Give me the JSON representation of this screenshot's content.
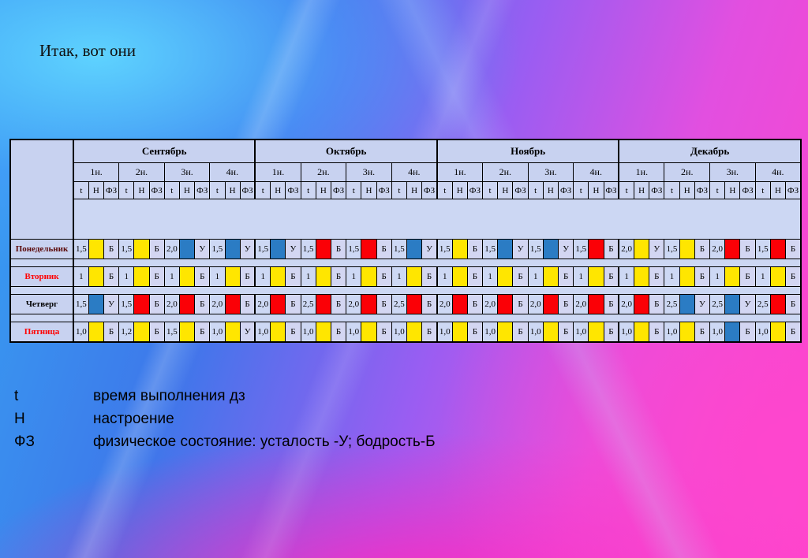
{
  "slide": {
    "title": "Итак, вот они"
  },
  "table": {
    "months": [
      "Сентябрь",
      "Октябрь",
      "Ноябрь",
      "Декабрь"
    ],
    "weeks": [
      "1н.",
      "2н.",
      "3н.",
      "4н."
    ],
    "measures": [
      "t",
      "Н",
      "ФЗ"
    ],
    "colors": {
      "y": "#ffe600",
      "r": "#fb0006",
      "b": "#2b7cc4"
    },
    "days": [
      {
        "name": "Понедельник",
        "color": "#5c0a0a",
        "cells": [
          {
            "t": "1,5",
            "n": "y",
            "fz": "Б"
          },
          {
            "t": "1,5",
            "n": "y",
            "fz": "Б"
          },
          {
            "t": "2,0",
            "n": "b",
            "fz": "У"
          },
          {
            "t": "1,5",
            "n": "b",
            "fz": "У"
          },
          {
            "t": "1,5",
            "n": "b",
            "fz": "У"
          },
          {
            "t": "1,5",
            "n": "r",
            "fz": "Б"
          },
          {
            "t": "1,5",
            "n": "r",
            "fz": "Б"
          },
          {
            "t": "1,5",
            "n": "b",
            "fz": "У"
          },
          {
            "t": "1,5",
            "n": "y",
            "fz": "Б"
          },
          {
            "t": "1,5",
            "n": "b",
            "fz": "У"
          },
          {
            "t": "1,5",
            "n": "b",
            "fz": "У"
          },
          {
            "t": "1,5",
            "n": "r",
            "fz": "Б"
          },
          {
            "t": "2,0",
            "n": "y",
            "fz": "У"
          },
          {
            "t": "1,5",
            "n": "y",
            "fz": "Б"
          },
          {
            "t": "2,0",
            "n": "r",
            "fz": "Б"
          },
          {
            "t": "1,5",
            "n": "r",
            "fz": "Б"
          }
        ]
      },
      {
        "name": "Вторник",
        "color": "#ff0000",
        "cells": [
          {
            "t": "1",
            "n": "y",
            "fz": "Б"
          },
          {
            "t": "1",
            "n": "y",
            "fz": "Б"
          },
          {
            "t": "1",
            "n": "y",
            "fz": "Б"
          },
          {
            "t": "1",
            "n": "y",
            "fz": "Б"
          },
          {
            "t": "1",
            "n": "y",
            "fz": "Б"
          },
          {
            "t": "1",
            "n": "y",
            "fz": "Б"
          },
          {
            "t": "1",
            "n": "y",
            "fz": "Б"
          },
          {
            "t": "1",
            "n": "y",
            "fz": "Б"
          },
          {
            "t": "1",
            "n": "y",
            "fz": "Б"
          },
          {
            "t": "1",
            "n": "y",
            "fz": "Б"
          },
          {
            "t": "1",
            "n": "y",
            "fz": "Б"
          },
          {
            "t": "1",
            "n": "y",
            "fz": "Б"
          },
          {
            "t": "1",
            "n": "y",
            "fz": "Б"
          },
          {
            "t": "1",
            "n": "y",
            "fz": "Б"
          },
          {
            "t": "1",
            "n": "y",
            "fz": "Б"
          },
          {
            "t": "1",
            "n": "y",
            "fz": "Б"
          }
        ]
      },
      {
        "name": "Четверг",
        "color": "#000000",
        "cells": [
          {
            "t": "1,5",
            "n": "b",
            "fz": "У"
          },
          {
            "t": "1,5",
            "n": "r",
            "fz": "Б"
          },
          {
            "t": "2,0",
            "n": "r",
            "fz": "Б"
          },
          {
            "t": "2,0",
            "n": "r",
            "fz": "Б"
          },
          {
            "t": "2,0",
            "n": "r",
            "fz": "Б"
          },
          {
            "t": "2,5",
            "n": "r",
            "fz": "Б"
          },
          {
            "t": "2,0",
            "n": "r",
            "fz": "Б"
          },
          {
            "t": "2,5",
            "n": "r",
            "fz": "Б"
          },
          {
            "t": "2,0",
            "n": "r",
            "fz": "Б"
          },
          {
            "t": "2,0",
            "n": "r",
            "fz": "Б"
          },
          {
            "t": "2,0",
            "n": "r",
            "fz": "Б"
          },
          {
            "t": "2,0",
            "n": "r",
            "fz": "Б"
          },
          {
            "t": "2,0",
            "n": "r",
            "fz": "Б"
          },
          {
            "t": "2,5",
            "n": "b",
            "fz": "У"
          },
          {
            "t": "2,5",
            "n": "b",
            "fz": "У"
          },
          {
            "t": "2,5",
            "n": "r",
            "fz": "Б"
          }
        ]
      },
      {
        "name": "Пятница",
        "color": "#ff0000",
        "cells": [
          {
            "t": "1,0",
            "n": "y",
            "fz": "Б"
          },
          {
            "t": "1,2",
            "n": "y",
            "fz": "Б"
          },
          {
            "t": "1,5",
            "n": "y",
            "fz": "Б"
          },
          {
            "t": "1,0",
            "n": "y",
            "fz": "У"
          },
          {
            "t": "1,0",
            "n": "y",
            "fz": "Б"
          },
          {
            "t": "1,0",
            "n": "y",
            "fz": "Б"
          },
          {
            "t": "1,0",
            "n": "y",
            "fz": "Б"
          },
          {
            "t": "1,0",
            "n": "y",
            "fz": "Б"
          },
          {
            "t": "1,0",
            "n": "y",
            "fz": "Б"
          },
          {
            "t": "1,0",
            "n": "y",
            "fz": "Б"
          },
          {
            "t": "1,0",
            "n": "y",
            "fz": "Б"
          },
          {
            "t": "1,0",
            "n": "y",
            "fz": "Б"
          },
          {
            "t": "1,0",
            "n": "y",
            "fz": "Б"
          },
          {
            "t": "1,0",
            "n": "y",
            "fz": "Б"
          },
          {
            "t": "1,0",
            "n": "b",
            "fz": "Б"
          },
          {
            "t": "1,0",
            "n": "y",
            "fz": "Б"
          }
        ]
      }
    ]
  },
  "legend": {
    "items": [
      {
        "code": "t",
        "text": "время выполнения дз"
      },
      {
        "code": "Н",
        "text": "настроение"
      },
      {
        "code": "ФЗ",
        "text": "физическое состояние: усталость -У; бодрость-Б"
      }
    ]
  }
}
